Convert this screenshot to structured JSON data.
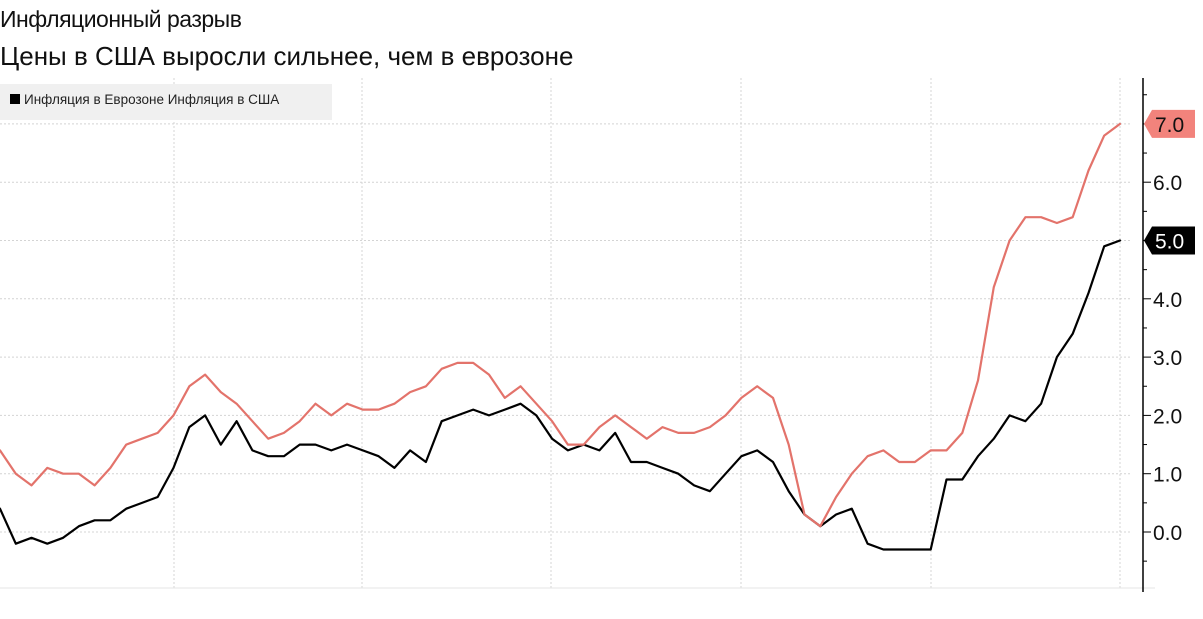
{
  "chart_data": {
    "type": "line",
    "title": "Инфляционный разрыв",
    "subtitle": "Цены в США выросли сильнее, чем в еврозоне",
    "legend_text": "Инфляция в Еврозоне Инфляция в США",
    "legend_position": "top-left",
    "grid": true,
    "ylim": [
      -1.0,
      7.9
    ],
    "y_ticks": [
      "6.0",
      "4.0",
      "3.0",
      "2.0",
      "1.0",
      "0.0"
    ],
    "colors": {
      "eurozone": "#000000",
      "usa": "#e3736b",
      "grid": "#d4d4d4",
      "usa_label_bg": "#f2837c",
      "eurozone_label_bg": "#000000"
    },
    "series": [
      {
        "name": "Инфляция в Еврозоне",
        "color": "#000000",
        "last_label": "5.0",
        "values": [
          0.4,
          -0.2,
          -0.1,
          -0.2,
          -0.1,
          0.1,
          0.2,
          0.2,
          0.4,
          0.5,
          0.6,
          1.1,
          1.8,
          2.0,
          1.5,
          1.9,
          1.4,
          1.3,
          1.3,
          1.5,
          1.5,
          1.4,
          1.5,
          1.4,
          1.3,
          1.1,
          1.4,
          1.2,
          1.9,
          2.0,
          2.1,
          2.0,
          2.1,
          2.2,
          2.0,
          1.6,
          1.4,
          1.5,
          1.4,
          1.7,
          1.2,
          1.2,
          1.1,
          1.0,
          0.8,
          0.7,
          1.0,
          1.3,
          1.4,
          1.2,
          0.7,
          0.3,
          0.1,
          0.3,
          0.4,
          -0.2,
          -0.3,
          -0.3,
          -0.3,
          -0.3,
          0.9,
          0.9,
          1.3,
          1.6,
          2.0,
          1.9,
          2.2,
          3.0,
          3.4,
          4.1,
          4.9,
          5.0
        ]
      },
      {
        "name": "Инфляция в США",
        "color": "#e3736b",
        "last_label": "7.0",
        "values": [
          1.4,
          1.0,
          0.8,
          1.1,
          1.0,
          1.0,
          0.8,
          1.1,
          1.5,
          1.6,
          1.7,
          2.0,
          2.5,
          2.7,
          2.4,
          2.2,
          1.9,
          1.6,
          1.7,
          1.9,
          2.2,
          2.0,
          2.2,
          2.1,
          2.1,
          2.2,
          2.4,
          2.5,
          2.8,
          2.9,
          2.9,
          2.7,
          2.3,
          2.5,
          2.2,
          1.9,
          1.5,
          1.5,
          1.8,
          2.0,
          1.8,
          1.6,
          1.8,
          1.7,
          1.7,
          1.8,
          2.0,
          2.3,
          2.5,
          2.3,
          1.5,
          0.3,
          0.1,
          0.6,
          1.0,
          1.3,
          1.4,
          1.2,
          1.2,
          1.4,
          1.4,
          1.7,
          2.6,
          4.2,
          5.0,
          5.4,
          5.4,
          5.3,
          5.4,
          6.2,
          6.8,
          7.0
        ]
      }
    ]
  }
}
